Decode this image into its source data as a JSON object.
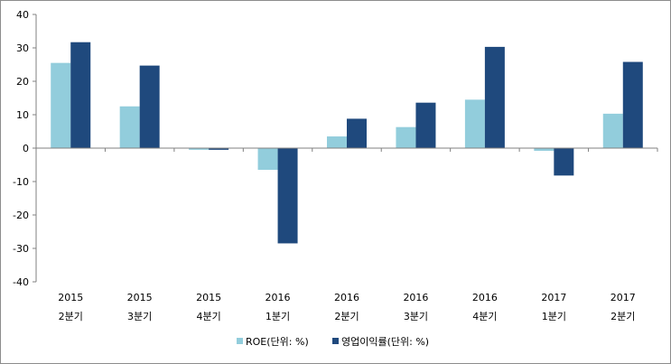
{
  "chart_data": {
    "type": "bar",
    "categories": [
      {
        "year": "2015",
        "quarter": "2분기"
      },
      {
        "year": "2015",
        "quarter": "3분기"
      },
      {
        "year": "2015",
        "quarter": "4분기"
      },
      {
        "year": "2016",
        "quarter": "1분기"
      },
      {
        "year": "2016",
        "quarter": "2분기"
      },
      {
        "year": "2016",
        "quarter": "3분기"
      },
      {
        "year": "2016",
        "quarter": "4분기"
      },
      {
        "year": "2017",
        "quarter": "1분기"
      },
      {
        "year": "2017",
        "quarter": "2분기"
      }
    ],
    "series": [
      {
        "name": "ROE(단위: %)",
        "color": "#92CDDC",
        "values": [
          25.5,
          12.5,
          -0.5,
          -6.5,
          3.5,
          6.3,
          14.5,
          -0.8,
          10.3
        ]
      },
      {
        "name": "영업이익률(단위: %)",
        "color": "#1F497D",
        "values": [
          31.7,
          24.7,
          -0.5,
          -28.5,
          8.8,
          13.6,
          30.3,
          -8.2,
          25.8
        ]
      }
    ],
    "ylim": [
      -40,
      40
    ],
    "yticks": [
      40,
      30,
      20,
      10,
      0,
      -10,
      -20,
      -30,
      -40
    ],
    "legend_position": "bottom",
    "grid": false
  }
}
